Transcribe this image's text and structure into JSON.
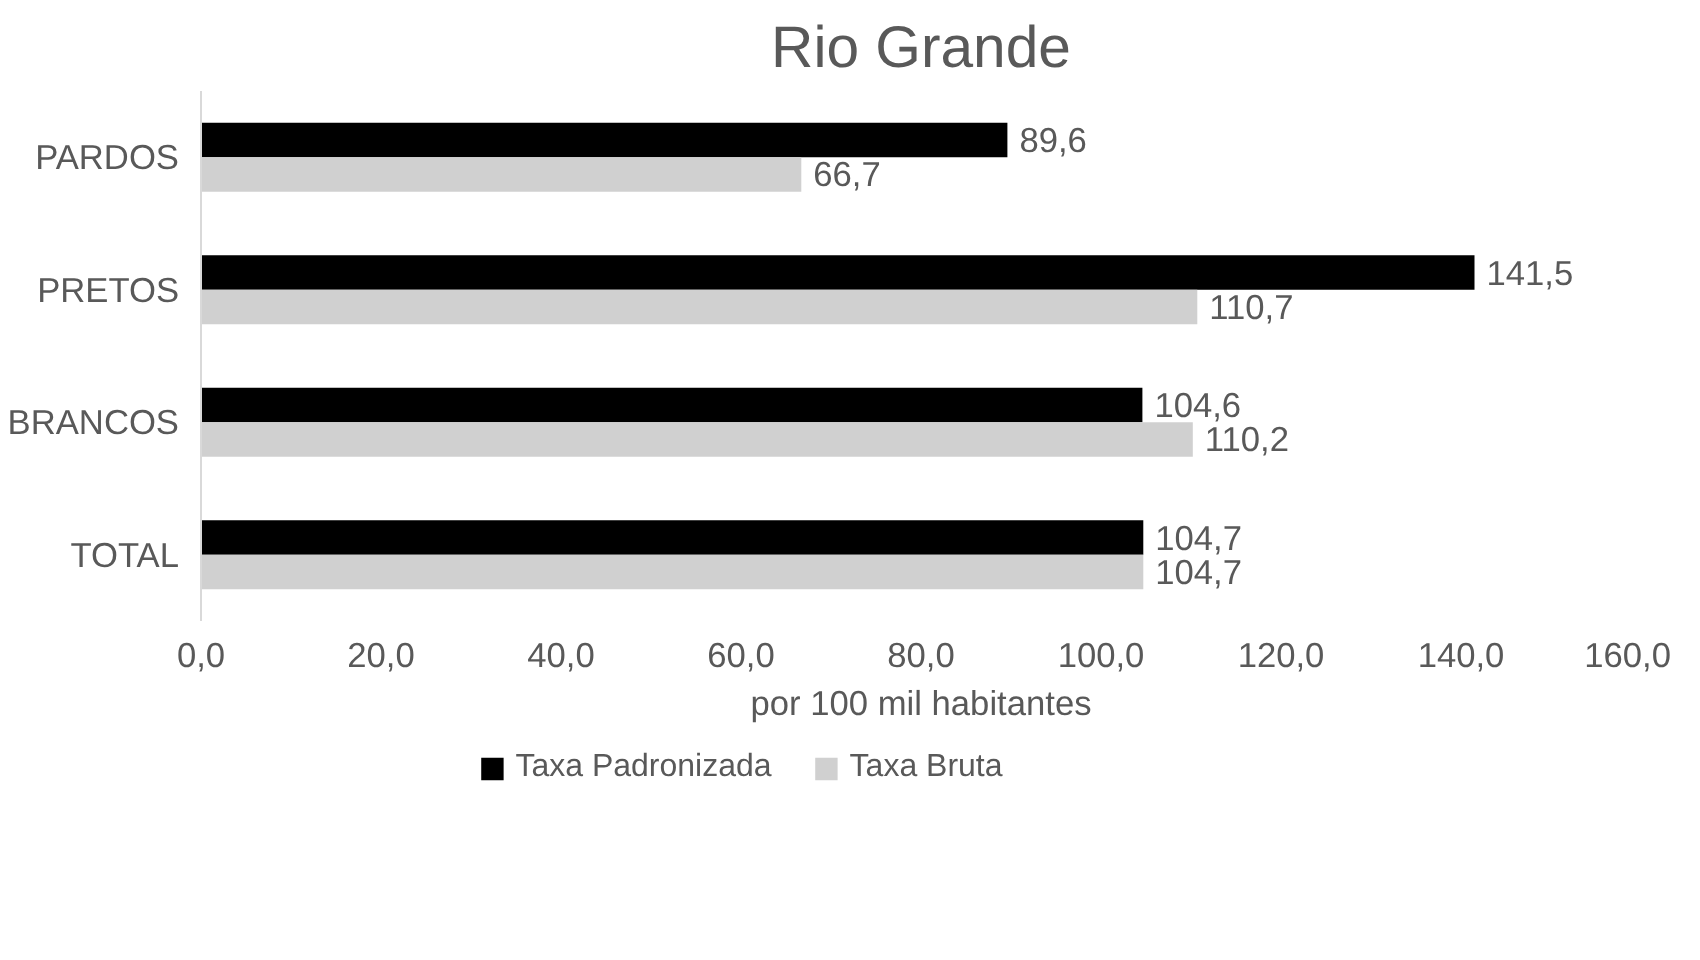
{
  "chart_data": {
    "type": "bar",
    "orientation": "horizontal",
    "title": "Rio Grande",
    "xlabel": "por 100 mil habitantes",
    "categories": [
      "PARDOS",
      "PRETOS",
      "BRANCOS",
      "TOTAL"
    ],
    "series": [
      {
        "name": "Taxa Padronizada",
        "color": "#000000",
        "values": [
          89.6,
          141.5,
          104.6,
          104.7
        ],
        "value_labels": [
          "89,6",
          "141,5",
          "104,6",
          "104,7"
        ]
      },
      {
        "name": "Taxa Bruta",
        "color": "#d0d0d0",
        "values": [
          66.7,
          110.7,
          110.2,
          104.7
        ],
        "value_labels": [
          "66,7",
          "110,7",
          "110,2",
          "104,7"
        ]
      }
    ],
    "xlim": [
      0,
      160
    ],
    "xticks": [
      {
        "value": 0,
        "label": "0,0"
      },
      {
        "value": 20,
        "label": "20,0"
      },
      {
        "value": 40,
        "label": "40,0"
      },
      {
        "value": 60,
        "label": "60,0"
      },
      {
        "value": 80,
        "label": "80,0"
      },
      {
        "value": 100,
        "label": "100,0"
      },
      {
        "value": 120,
        "label": "120,0"
      },
      {
        "value": 140,
        "label": "140,0"
      },
      {
        "value": 160,
        "label": "160,0"
      }
    ],
    "grid": false,
    "legend": "bottom"
  }
}
